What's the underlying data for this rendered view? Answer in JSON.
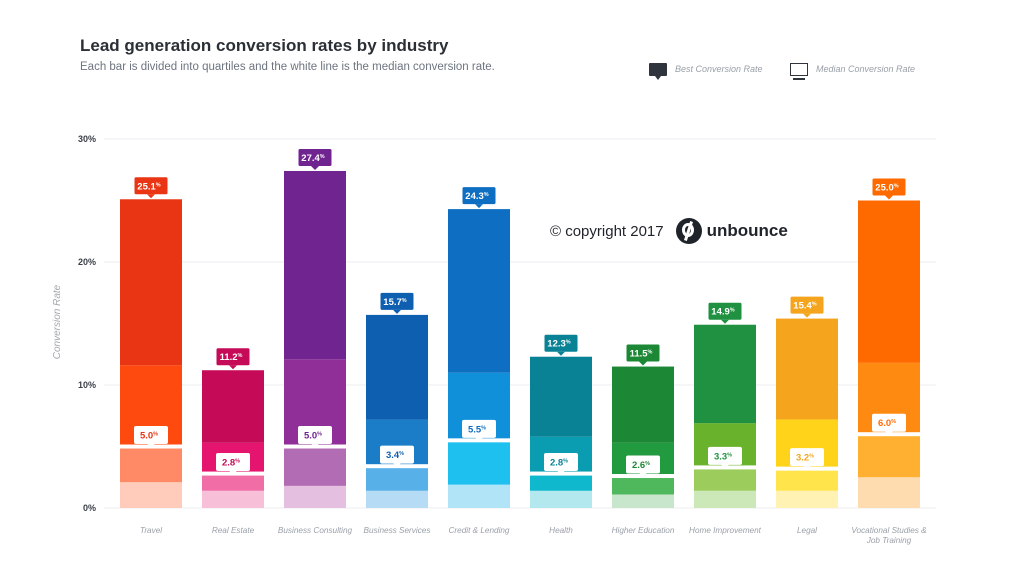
{
  "header": {
    "title": "Lead generation conversion rates by industry",
    "subtitle": "Each bar is divided into quartiles and the white line is the median conversion rate."
  },
  "legend": {
    "best": "Best Conversion Rate",
    "median": "Median Conversion Rate"
  },
  "watermark": {
    "copyright": "© copyright 2017",
    "brand": "unbounce"
  },
  "chart_data": {
    "type": "bar",
    "ylabel": "Conversion Rate",
    "ylim": [
      0,
      30
    ],
    "yticks": [
      {
        "value": 0,
        "label": "0%"
      },
      {
        "value": 10,
        "label": "10%"
      },
      {
        "value": 20,
        "label": "20%"
      },
      {
        "value": 30,
        "label": "30%"
      }
    ],
    "grid": true,
    "categories": [
      "Travel",
      "Real Estate",
      "Business Consulting",
      "Business Services",
      "Credit & Lending",
      "Health",
      "Higher Education",
      "Home Improvement",
      "Legal",
      "Vocational Studies & Job Training"
    ],
    "series": [
      {
        "name": "Best Conversion Rate",
        "values": [
          25.1,
          11.2,
          27.4,
          15.7,
          24.3,
          12.3,
          11.5,
          14.9,
          15.4,
          25.0
        ]
      },
      {
        "name": "Median Conversion Rate",
        "values": [
          5.0,
          2.8,
          5.0,
          3.4,
          5.5,
          2.8,
          2.6,
          3.3,
          3.2,
          6.0
        ]
      }
    ],
    "quartiles": [
      [
        2.1,
        5.0,
        11.6,
        25.1
      ],
      [
        1.4,
        2.8,
        5.3,
        11.2
      ],
      [
        1.8,
        5.0,
        12.1,
        27.4
      ],
      [
        1.4,
        3.4,
        7.2,
        15.7
      ],
      [
        1.9,
        5.5,
        11.0,
        24.3
      ],
      [
        1.4,
        2.8,
        5.8,
        12.3
      ],
      [
        1.1,
        2.6,
        5.3,
        11.5
      ],
      [
        1.4,
        3.3,
        6.9,
        14.9
      ],
      [
        1.4,
        3.2,
        7.2,
        15.4
      ],
      [
        2.5,
        6.0,
        11.8,
        25.0
      ]
    ],
    "best_labels": [
      "25.1%",
      "11.2%",
      "27.4%",
      "15.7%",
      "24.3%",
      "12.3%",
      "11.5%",
      "14.9%",
      "15.4%",
      "25.0%"
    ],
    "median_labels": [
      "5.0%",
      "2.8%",
      "5.0%",
      "3.4%",
      "5.5%",
      "2.8%",
      "2.6%",
      "3.3%",
      "3.2%",
      "6.0%"
    ],
    "category_labels": [
      [
        "Travel"
      ],
      [
        "Real Estate"
      ],
      [
        "Business Consulting"
      ],
      [
        "Business Services"
      ],
      [
        "Credit & Lending"
      ],
      [
        "Health"
      ],
      [
        "Higher Education"
      ],
      [
        "Home Improvement"
      ],
      [
        "Legal"
      ],
      [
        "Vocational Studies &",
        "Job Training"
      ]
    ],
    "colors": [
      [
        "#ffccbc",
        "#ff8a65",
        "#ff4a0f",
        "#e93513"
      ],
      [
        "#f8bfd8",
        "#f06ea5",
        "#e5156f",
        "#c50a57"
      ],
      [
        "#e4bfe0",
        "#b16cb4",
        "#8f2f97",
        "#702490"
      ],
      [
        "#b5dbf5",
        "#58b0e8",
        "#1b7cc7",
        "#0f5fb0"
      ],
      [
        "#b2e4f8",
        "#1dc0ee",
        "#0f90d8",
        "#0d6ec2"
      ],
      [
        "#b2e8ee",
        "#0fb8cc",
        "#0a9cb0",
        "#0a8296"
      ],
      [
        "#c8e6cc",
        "#4fb85d",
        "#229a3f",
        "#1c8836"
      ],
      [
        "#cce8b8",
        "#9ccc5c",
        "#69b22b",
        "#1f9140"
      ],
      [
        "#fff2b2",
        "#ffe44c",
        "#ffd31a",
        "#f4a51d"
      ],
      [
        "#ffdcb0",
        "#ffb031",
        "#ff8a12",
        "#ff6a00"
      ]
    ],
    "label_colors": [
      "#e93513",
      "#c50a57",
      "#702490",
      "#0f5fb0",
      "#0d6ec2",
      "#0a8296",
      "#1c8836",
      "#1f9140",
      "#f4a51d",
      "#ff6a00"
    ]
  }
}
